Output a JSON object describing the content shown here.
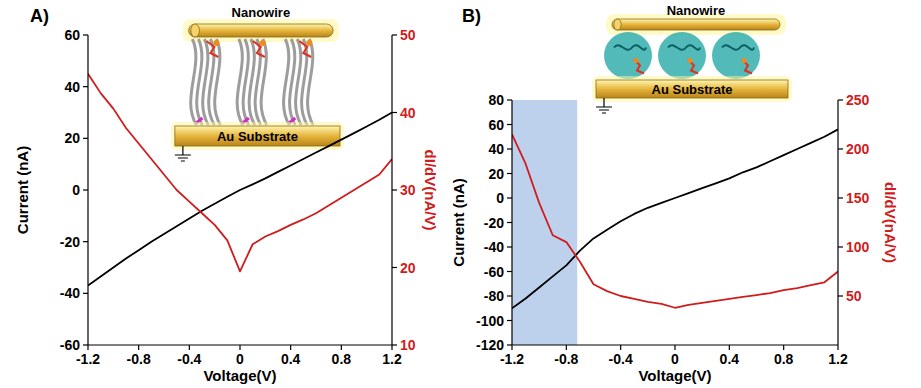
{
  "chart_data": [
    {
      "type": "line",
      "panel": "A)",
      "xlabel": "Voltage(V)",
      "ylabel": "Current (nA)",
      "y2label": "dI/dV(nA/V)",
      "annotations": [
        "Nanowire",
        "Au Substrate"
      ],
      "x": [
        -1.2,
        -1.1,
        -1,
        -0.9,
        -0.8,
        -0.7,
        -0.6,
        -0.5,
        -0.4,
        -0.3,
        -0.2,
        -0.1,
        0,
        0.1,
        0.2,
        0.3,
        0.4,
        0.5,
        0.6,
        0.7,
        0.8,
        0.9,
        1,
        1.1,
        1.2
      ],
      "series": [
        {
          "color": "#000000",
          "values": [
            -37,
            -33.5,
            -30,
            -26.5,
            -23.3,
            -20,
            -17,
            -14,
            -11,
            -8,
            -5.3,
            -2.6,
            0,
            2.2,
            4.5,
            7,
            9.5,
            12,
            14.5,
            17,
            19.5,
            22,
            24.6,
            27.2,
            30
          ]
        },
        {
          "color": "#d01c1c",
          "axis": "y2",
          "values": [
            45,
            42.5,
            40.5,
            38,
            36,
            34,
            32,
            30,
            28.5,
            27,
            25.5,
            23.5,
            19.5,
            23,
            24,
            24.7,
            25.5,
            26.2,
            27,
            28,
            29,
            30,
            31,
            32,
            34
          ]
        }
      ],
      "xlim": [
        -1.2,
        1.2
      ],
      "xticks": [
        -1.2,
        -0.8,
        -0.4,
        0,
        0.4,
        0.8,
        1.2
      ],
      "ylim": [
        -60,
        60
      ],
      "yticks": [
        -60,
        -40,
        -20,
        0,
        20,
        40,
        60
      ],
      "y2lim": [
        10,
        50
      ],
      "y2ticks": [
        10,
        20,
        30,
        40,
        50
      ],
      "grid": false
    },
    {
      "type": "line",
      "panel": "B)",
      "xlabel": "Voltage(V)",
      "ylabel": "Current (nA)",
      "y2label": "dI/dV(nA/V)",
      "annotations": [
        "Nanowire",
        "Au Substrate"
      ],
      "highlight_x": [
        -1.2,
        -0.72
      ],
      "x": [
        -1.2,
        -1.1,
        -1,
        -0.9,
        -0.8,
        -0.7,
        -0.6,
        -0.5,
        -0.4,
        -0.3,
        -0.2,
        -0.1,
        0,
        0.1,
        0.2,
        0.3,
        0.4,
        0.5,
        0.6,
        0.7,
        0.8,
        0.9,
        1,
        1.1,
        1.2
      ],
      "series": [
        {
          "color": "#000000",
          "values": [
            -90,
            -82,
            -73,
            -64,
            -55,
            -43,
            -33,
            -26,
            -19,
            -13,
            -8,
            -4,
            0,
            4,
            8,
            12,
            16,
            21,
            25,
            30,
            35,
            40,
            45,
            50,
            56
          ]
        },
        {
          "color": "#d01c1c",
          "axis": "y2",
          "values": [
            215,
            185,
            145,
            112,
            105,
            85,
            62,
            55,
            50,
            47,
            44,
            42,
            38,
            41,
            43,
            45,
            47,
            49,
            51,
            53,
            56,
            58,
            61,
            64,
            75
          ]
        }
      ],
      "xlim": [
        -1.2,
        1.2
      ],
      "xticks": [
        -1.2,
        -0.8,
        -0.4,
        0,
        0.4,
        0.8,
        1.2
      ],
      "ylim": [
        -120,
        80
      ],
      "yticks": [
        -120,
        -100,
        -80,
        -60,
        -40,
        -20,
        0,
        20,
        40,
        60,
        80
      ],
      "y2lim": [
        0,
        250
      ],
      "y2ticks": [
        50,
        100,
        150,
        200,
        250
      ],
      "grid": false
    }
  ]
}
